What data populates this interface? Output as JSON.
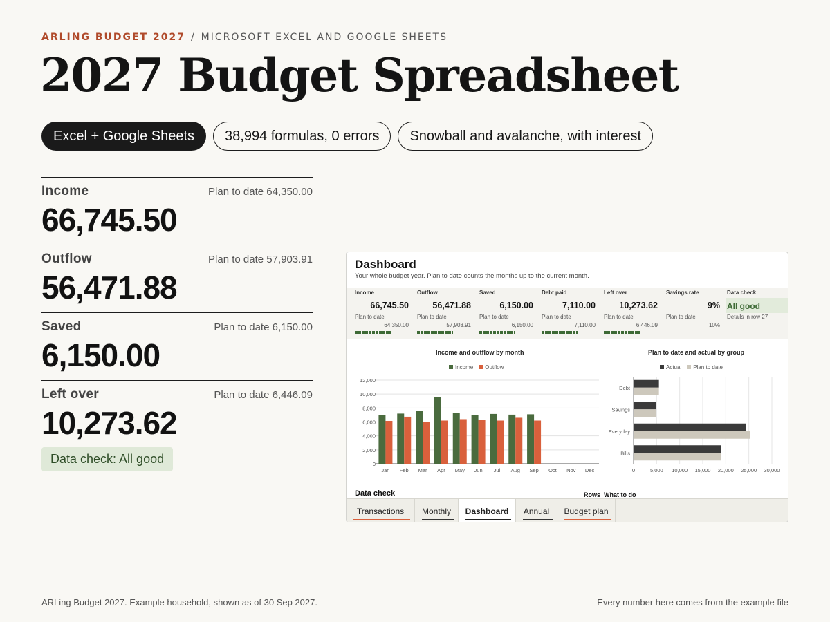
{
  "header": {
    "brand": "ARLING BUDGET 2027",
    "separator": "/",
    "subtitle": "MICROSOFT EXCEL AND GOOGLE SHEETS",
    "title": "2027 Budget Spreadsheet"
  },
  "pills": [
    "Excel + Google Sheets",
    "38,994 formulas, 0 errors",
    "Snowball and avalanche, with interest"
  ],
  "metrics": [
    {
      "label": "Income",
      "plan": "Plan to date 64,350.00",
      "value": "66,745.50"
    },
    {
      "label": "Outflow",
      "plan": "Plan to date 57,903.91",
      "value": "56,471.88"
    },
    {
      "label": "Saved",
      "plan": "Plan to date 6,150.00",
      "value": "6,150.00"
    },
    {
      "label": "Left over",
      "plan": "Plan to date 6,446.09",
      "value": "10,273.62"
    }
  ],
  "data_check_badge": "Data check: All good",
  "sheet": {
    "title": "Dashboard",
    "description": "Your whole budget year. Plan to date counts the months up to the current month.",
    "kpis": [
      {
        "label": "Income",
        "value": "66,745.50",
        "plan_label": "Plan to date",
        "plan_value": "64,350.00"
      },
      {
        "label": "Outflow",
        "value": "56,471.88",
        "plan_label": "Plan to date",
        "plan_value": "57,903.91"
      },
      {
        "label": "Saved",
        "value": "6,150.00",
        "plan_label": "Plan to date",
        "plan_value": "6,150.00"
      },
      {
        "label": "Debt paid",
        "value": "7,110.00",
        "plan_label": "Plan to date",
        "plan_value": "7,110.00"
      },
      {
        "label": "Left over",
        "value": "10,273.62",
        "plan_label": "Plan to date",
        "plan_value": "6,446.09"
      },
      {
        "label": "Savings rate",
        "value": "9%",
        "plan_label": "Plan to date",
        "plan_value": "10%"
      }
    ],
    "data_check": {
      "label": "Data check",
      "value": "All good",
      "details": "Details in row 27"
    },
    "footer_left": "Data check",
    "footer_rows": "Rows",
    "footer_todo": "What to do",
    "tabs": [
      {
        "label": "Transactions",
        "accent": "#d9603c"
      },
      {
        "label": "Monthly",
        "accent": "#333333"
      },
      {
        "label": "Dashboard",
        "accent": "#222222"
      },
      {
        "label": "Annual",
        "accent": "#333333"
      },
      {
        "label": "Budget plan",
        "accent": "#d9603c"
      }
    ],
    "active_tab": "Dashboard"
  },
  "chart_data": [
    {
      "type": "bar",
      "title": "Income and outflow by month",
      "categories": [
        "Jan",
        "Feb",
        "Mar",
        "Apr",
        "May",
        "Jun",
        "Jul",
        "Aug",
        "Sep",
        "Oct",
        "Nov",
        "Dec"
      ],
      "series": [
        {
          "name": "Income",
          "color": "#4a6b3e",
          "values": [
            7000,
            7200,
            7600,
            9600,
            7250,
            7000,
            7150,
            7050,
            7100,
            null,
            null,
            null
          ]
        },
        {
          "name": "Outflow",
          "color": "#d9603c",
          "values": [
            6150,
            6750,
            5950,
            6200,
            6400,
            6300,
            6200,
            6600,
            6200,
            null,
            null,
            null
          ]
        }
      ],
      "ylim": [
        0,
        12000
      ],
      "yticks": [
        "0",
        "2,000",
        "4,000",
        "6,000",
        "8,000",
        "10,000",
        "12,000"
      ],
      "grid": true,
      "legend": "top-center"
    },
    {
      "type": "bar",
      "orientation": "horizontal",
      "title": "Plan to date and actual by group",
      "categories": [
        "Debt",
        "Savings",
        "Everyday",
        "Bills"
      ],
      "series": [
        {
          "name": "Actual",
          "color": "#3a3a3a",
          "values": [
            5500,
            4900,
            24300,
            19000
          ]
        },
        {
          "name": "Plan to date",
          "color": "#cdc8bc",
          "values": [
            5500,
            4900,
            25300,
            19000
          ]
        }
      ],
      "xlim": [
        0,
        30000
      ],
      "xticks": [
        "0",
        "5,000",
        "10,000",
        "15,000",
        "20,000",
        "25,000",
        "30,000"
      ],
      "grid": true,
      "legend": "top-center"
    }
  ],
  "footer": {
    "left": "ARLing Budget 2027. Example household, shown as of 30 Sep 2027.",
    "right": "Every number here comes from the example file"
  }
}
